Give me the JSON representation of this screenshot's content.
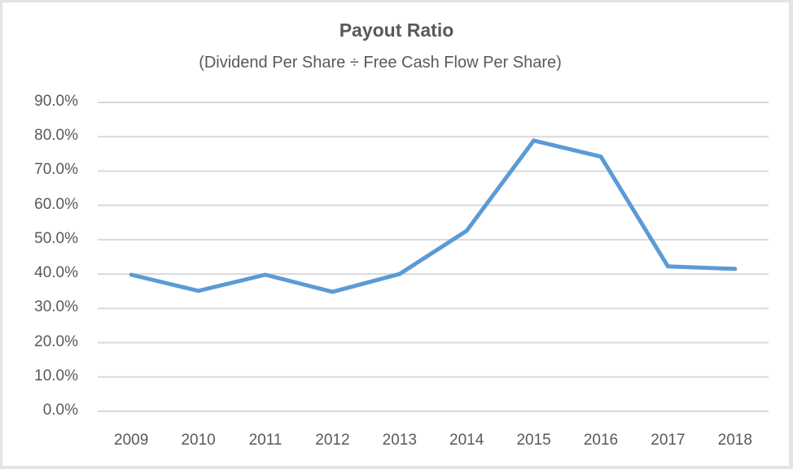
{
  "chart_data": {
    "type": "line",
    "title": "Payout Ratio",
    "subtitle": "(Dividend Per Share ÷ Free Cash Flow Per Share)",
    "xlabel": "",
    "ylabel": "",
    "categories": [
      "2009",
      "2010",
      "2011",
      "2012",
      "2013",
      "2014",
      "2015",
      "2016",
      "2017",
      "2018"
    ],
    "series": [
      {
        "name": "Payout Ratio",
        "color": "#5b9bd5",
        "values": [
          39.8,
          35.1,
          39.8,
          34.8,
          40.0,
          52.6,
          78.9,
          74.2,
          42.2,
          41.5
        ]
      }
    ],
    "yticks": [
      "0.0%",
      "10.0%",
      "20.0%",
      "30.0%",
      "40.0%",
      "50.0%",
      "60.0%",
      "70.0%",
      "80.0%",
      "90.0%"
    ],
    "ylim": [
      0,
      90
    ],
    "grid": true,
    "legend": "none"
  },
  "colors": {
    "line": "#5b9bd5",
    "grid": "#d9d9d9",
    "text": "#595959"
  }
}
